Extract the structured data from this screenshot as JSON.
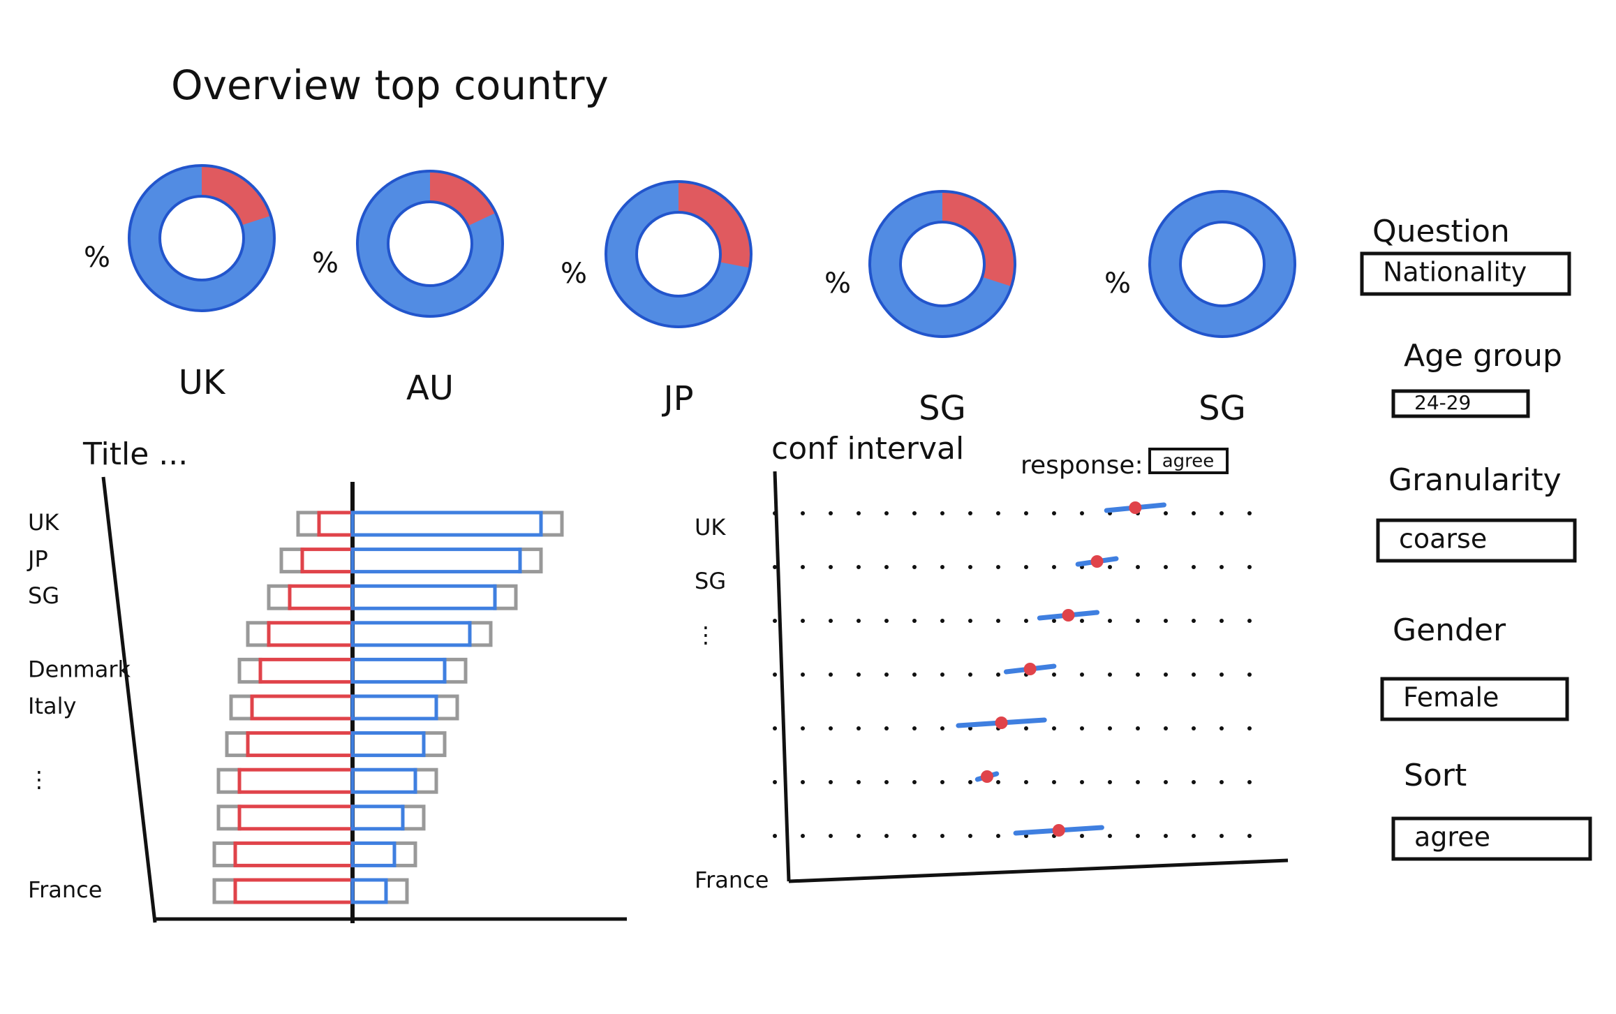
{
  "title": "Overview top country",
  "donuts": [
    {
      "label": "UK",
      "unit": "%",
      "share": 20
    },
    {
      "label": "AU",
      "unit": "%",
      "share": 18
    },
    {
      "label": "JP",
      "unit": "%",
      "share": 28
    },
    {
      "label": "SG",
      "unit": "%",
      "share": 30
    },
    {
      "label": "SG",
      "unit": "%",
      "share": 0
    }
  ],
  "donut_colors": {
    "share": "#e05a5f",
    "rest": "#3f7fe0"
  },
  "bar_chart": {
    "title": "Title ...",
    "categories": [
      "UK",
      "JP",
      "SG",
      null,
      "Denmark",
      "Italy",
      null,
      "⋮",
      null,
      null,
      "France"
    ],
    "left": [
      8,
      12,
      15,
      20,
      22,
      24,
      25,
      27,
      27,
      28,
      28
    ],
    "neutral": [
      10,
      10,
      10,
      10,
      10,
      10,
      10,
      10,
      10,
      10,
      10
    ],
    "right": [
      45,
      40,
      34,
      28,
      22,
      20,
      17,
      15,
      12,
      10,
      8
    ],
    "colors": {
      "left": "#e0434a",
      "neutral": "#999999",
      "right": "#3f7fe0"
    }
  },
  "ci_chart": {
    "title": "conf interval",
    "response_label": "response:",
    "response": "agree",
    "categories": [
      "UK",
      "SG",
      "⋮",
      null,
      null,
      null,
      "France"
    ],
    "values": [
      71,
      63,
      57,
      49,
      43,
      40,
      55
    ],
    "errors": [
      6,
      4,
      6,
      5,
      9,
      2,
      9
    ],
    "xlim": [
      0,
      100
    ],
    "colors": {
      "point": "#e0434a",
      "interval": "#3f7fe0"
    }
  },
  "controls": [
    {
      "label": "Question",
      "value": "Nationality"
    },
    {
      "label": "Age group",
      "value": "24-29"
    },
    {
      "label": "Granularity",
      "value": "coarse"
    },
    {
      "label": "Gender",
      "value": "Female"
    },
    {
      "label": "Sort",
      "value": "agree"
    }
  ]
}
